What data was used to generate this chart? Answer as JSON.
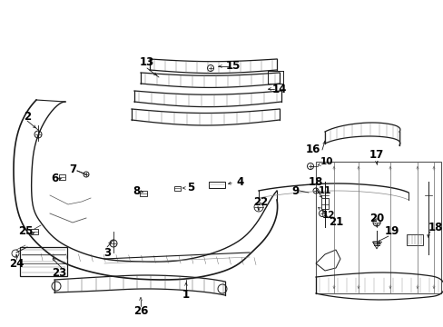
{
  "background_color": "#ffffff",
  "fig_width": 4.89,
  "fig_height": 3.6,
  "dpi": 100,
  "font_size": 8.5,
  "font_weight": "bold",
  "text_color": "#000000",
  "line_color": "#1a1a1a",
  "lw_main": 1.0,
  "lw_thin": 0.5,
  "lw_med": 0.7
}
